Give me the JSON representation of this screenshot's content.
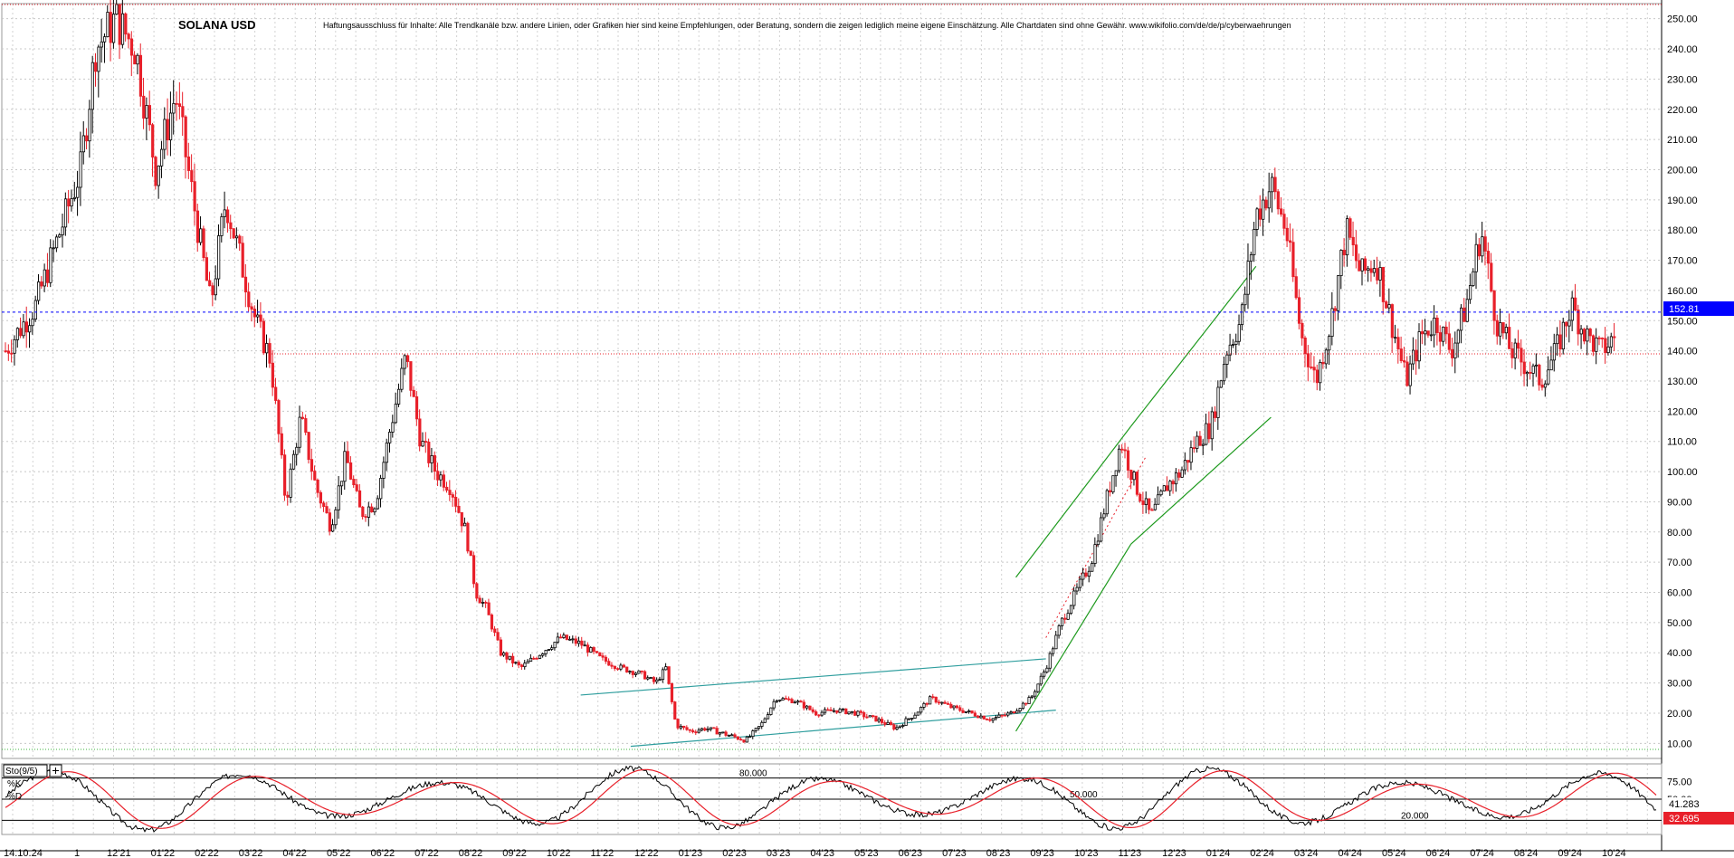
{
  "chart_data": {
    "type": "candlestick",
    "title": "SOLANA USD",
    "disclaimer": "Haftungsausschluss für Inhalte: Alle Trendkanäle bzw. andere Linien, oder Grafiken hier sind keine Empfehlungen, oder Beratung, sondern die zeigen lediglich meine eigene Einschätzung. Alle Chartdaten sind ohne Gewähr.  www.wikifolio.com/de/de/p/cyberwaehrungen",
    "ylim": [
      5,
      255
    ],
    "y_ticks": [
      "250.00",
      "240.00",
      "230.00",
      "220.00",
      "210.00",
      "200.00",
      "190.00",
      "180.00",
      "170.00",
      "160.00",
      "150.00",
      "140.00",
      "130.00",
      "120.00",
      "110.00",
      "100.00",
      "90.00",
      "80.00",
      "70.00",
      "60.00",
      "50.00",
      "40.00",
      "30.00",
      "20.00",
      "10.00"
    ],
    "x_ticks": [
      "14.10.24",
      "1",
      "12'21",
      "01'22",
      "02'22",
      "03'22",
      "04'22",
      "05'22",
      "06'22",
      "07'22",
      "08'22",
      "09'22",
      "10'22",
      "11'22",
      "12'22",
      "01'23",
      "02'23",
      "03'23",
      "04'23",
      "05'23",
      "06'23",
      "07'23",
      "08'23",
      "09'23",
      "10'23",
      "11'23",
      "12'23",
      "01'24",
      "02'24",
      "03'24",
      "04'24",
      "05'24",
      "06'24",
      "07'24",
      "08'24",
      "09'24",
      "10'24"
    ],
    "price_path": [
      [
        0,
        140
      ],
      [
        6,
        155
      ],
      [
        10,
        175
      ],
      [
        15,
        200
      ],
      [
        18,
        240
      ],
      [
        22,
        250
      ],
      [
        26,
        240
      ],
      [
        30,
        200
      ],
      [
        34,
        225
      ],
      [
        38,
        185
      ],
      [
        41,
        155
      ],
      [
        44,
        190
      ],
      [
        47,
        170
      ],
      [
        50,
        150
      ],
      [
        53,
        137
      ],
      [
        56,
        90
      ],
      [
        59,
        118
      ],
      [
        62,
        95
      ],
      [
        65,
        82
      ],
      [
        68,
        105
      ],
      [
        71,
        86
      ],
      [
        74,
        90
      ],
      [
        77,
        115
      ],
      [
        80,
        138
      ],
      [
        83,
        110
      ],
      [
        86,
        100
      ],
      [
        89,
        95
      ],
      [
        92,
        80
      ],
      [
        94,
        60
      ],
      [
        96,
        55
      ],
      [
        99,
        40
      ],
      [
        103,
        35
      ],
      [
        107,
        40
      ],
      [
        111,
        45
      ],
      [
        115,
        43
      ],
      [
        119,
        38
      ],
      [
        123,
        35
      ],
      [
        127,
        33
      ],
      [
        130,
        30
      ],
      [
        132,
        35
      ],
      [
        134,
        16
      ],
      [
        137,
        14
      ],
      [
        140,
        15
      ],
      [
        144,
        13
      ],
      [
        148,
        11
      ],
      [
        151,
        16
      ],
      [
        154,
        25
      ],
      [
        158,
        24
      ],
      [
        162,
        20
      ],
      [
        166,
        21
      ],
      [
        170,
        20
      ],
      [
        174,
        18
      ],
      [
        178,
        15
      ],
      [
        182,
        20
      ],
      [
        185,
        25
      ],
      [
        189,
        22
      ],
      [
        193,
        20
      ],
      [
        197,
        18
      ],
      [
        201,
        20
      ],
      [
        205,
        25
      ],
      [
        208,
        35
      ],
      [
        211,
        50
      ],
      [
        214,
        60
      ],
      [
        217,
        70
      ],
      [
        220,
        90
      ],
      [
        223,
        110
      ],
      [
        226,
        95
      ],
      [
        229,
        85
      ],
      [
        232,
        95
      ],
      [
        235,
        100
      ],
      [
        238,
        110
      ],
      [
        241,
        115
      ],
      [
        244,
        140
      ],
      [
        247,
        150
      ],
      [
        250,
        185
      ],
      [
        253,
        195
      ],
      [
        256,
        180
      ],
      [
        259,
        145
      ],
      [
        262,
        130
      ],
      [
        265,
        150
      ],
      [
        268,
        180
      ],
      [
        271,
        165
      ],
      [
        274,
        170
      ],
      [
        277,
        150
      ],
      [
        280,
        130
      ],
      [
        283,
        145
      ],
      [
        286,
        150
      ],
      [
        289,
        140
      ],
      [
        292,
        155
      ],
      [
        295,
        180
      ],
      [
        298,
        150
      ],
      [
        301,
        140
      ],
      [
        304,
        135
      ],
      [
        307,
        130
      ],
      [
        310,
        140
      ],
      [
        313,
        155
      ],
      [
        316,
        145
      ],
      [
        319,
        140
      ],
      [
        322,
        145
      ]
    ],
    "price_x_range": [
      0,
      330
    ],
    "last_price_label": "152.81",
    "last_price": 152.81,
    "support_line": 139,
    "indicator": {
      "name": "Sto(9/5)",
      "k_label": "%K",
      "d_label": "%D",
      "ylim": [
        0,
        100
      ],
      "levels": [
        {
          "value": 80,
          "label": "80.000"
        },
        {
          "value": 50,
          "label": "50.000"
        },
        {
          "value": 20,
          "label": "20.000"
        }
      ],
      "k_value_label": "41.283",
      "d_value_label": "32.695",
      "k_value": 41.283,
      "d_value": 32.695,
      "axis_ticks": [
        "75.00",
        "50.00",
        "25.00"
      ]
    },
    "trendlines": [
      {
        "from": [
          115,
          26
        ],
        "to": [
          208,
          38
        ],
        "color": "#2f9e9e"
      },
      {
        "from": [
          125,
          9
        ],
        "to": [
          210,
          21
        ],
        "color": "#2f9e9e"
      },
      {
        "from": [
          202,
          65
        ],
        "to": [
          225,
          115
        ],
        "color": "#1e9a1e"
      },
      {
        "from": [
          202,
          14
        ],
        "to": [
          225,
          76
        ],
        "color": "#1e9a1e"
      },
      {
        "from": [
          225,
          115
        ],
        "to": [
          250,
          168
        ],
        "color": "#1e9a1e"
      },
      {
        "from": [
          225,
          76
        ],
        "to": [
          253,
          118
        ],
        "color": "#1e9a1e"
      }
    ],
    "colors": {
      "up": "#000000",
      "down": "#e8202a",
      "grid": "#c8c8c8",
      "price_tag": "#0000ff",
      "k": "#000000",
      "d": "#e8202a"
    }
  }
}
